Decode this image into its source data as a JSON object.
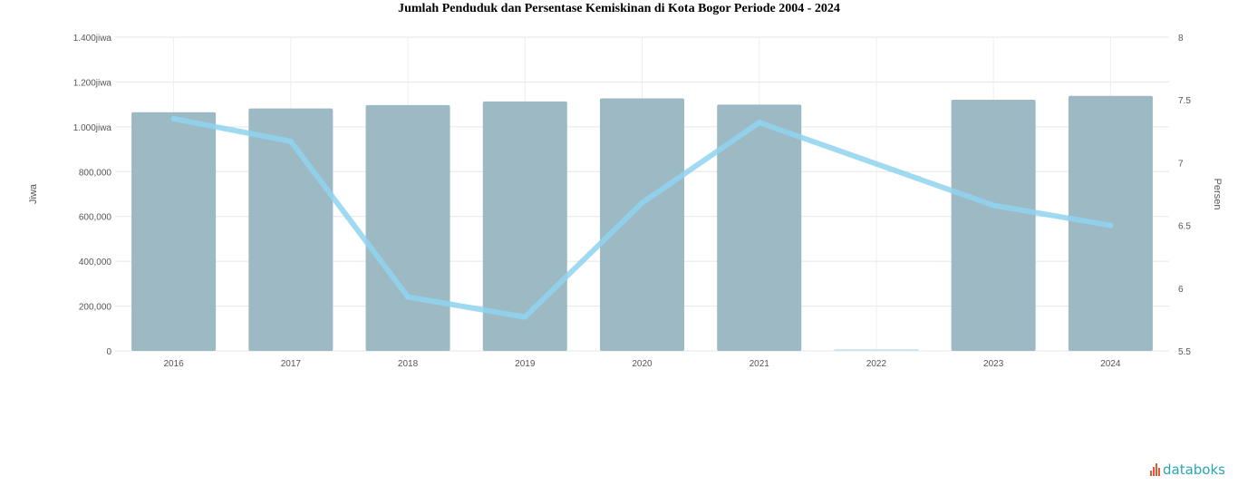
{
  "chart_data": {
    "type": "bar",
    "title": "Jumlah Penduduk dan Persentase Kemiskinan di Kota Bogor Periode 2004 - 2024",
    "categories": [
      "2016",
      "2017",
      "2018",
      "2019",
      "2020",
      "2021",
      "2022",
      "2023",
      "2024"
    ],
    "ylabel": "Jiwa",
    "y2label": "Persen",
    "ylim": [
      0,
      1400000
    ],
    "y2lim": [
      5.5,
      8
    ],
    "yticks": [
      "0",
      "200,000",
      "400,000",
      "600,000",
      "800,000",
      "1.000jiwa",
      "1.200jiwa",
      "1.400jiwa"
    ],
    "y2ticks": [
      "5.5",
      "6",
      "6.5",
      "7",
      "7.5",
      "8"
    ],
    "series": [
      {
        "name": "",
        "kind": "bar",
        "axis": "left",
        "color": "#9cb9c4",
        "values": [
          1065000,
          1082000,
          1097000,
          1113000,
          1127000,
          1099000,
          null,
          1121000,
          1138000
        ]
      },
      {
        "name": "",
        "kind": "line",
        "axis": "right",
        "color": "#8fd3ee",
        "values": [
          7.35,
          7.17,
          5.93,
          5.77,
          6.68,
          7.32,
          null,
          6.66,
          6.5
        ]
      }
    ],
    "grid": true
  },
  "brand": {
    "name": "databoks"
  }
}
